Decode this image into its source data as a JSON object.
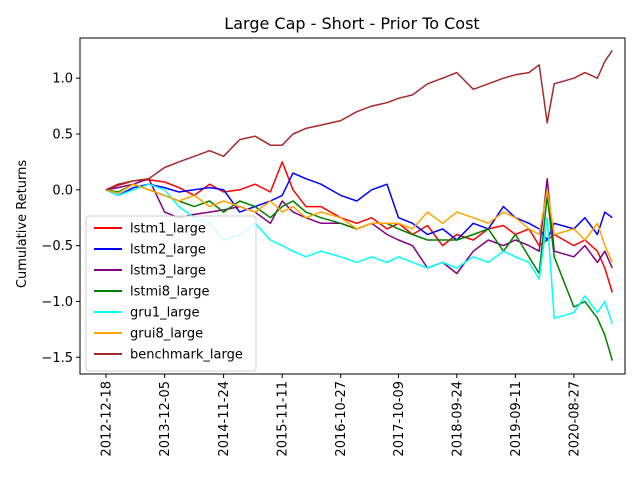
{
  "chart_data": {
    "type": "line",
    "title": "Large Cap - Short - Prior To Cost",
    "xlabel": "",
    "ylabel": "Cumulative Returns",
    "x_ticks": [
      "2012-12-18",
      "2013-12-05",
      "2014-11-24",
      "2015-11-11",
      "2016-10-27",
      "2017-10-09",
      "2018-09-24",
      "2019-09-11",
      "2020-08-27"
    ],
    "xlim": [
      "2012-07-15",
      "2021-06-30"
    ],
    "ylim": [
      -1.65,
      1.36
    ],
    "y_ticks": [
      -1.5,
      -1.0,
      -0.5,
      0.0,
      0.5,
      1.0
    ],
    "y_tick_labels": [
      "−1.5",
      "−1.0",
      "−0.5",
      "0.0",
      "0.5",
      "1.0"
    ],
    "grid": false,
    "legend_position": "lower-left",
    "series": [
      {
        "name": "lstm1_large",
        "color": "#ff0000",
        "x": [
          "2012-12-18",
          "2013-03-01",
          "2013-06-01",
          "2013-09-01",
          "2013-12-05",
          "2014-03-01",
          "2014-06-01",
          "2014-09-01",
          "2014-11-24",
          "2015-03-01",
          "2015-06-01",
          "2015-09-01",
          "2015-11-11",
          "2016-01-15",
          "2016-04-01",
          "2016-07-01",
          "2016-10-27",
          "2017-02-01",
          "2017-05-01",
          "2017-08-01",
          "2017-10-09",
          "2018-01-01",
          "2018-04-01",
          "2018-07-01",
          "2018-09-24",
          "2019-01-01",
          "2019-04-01",
          "2019-07-01",
          "2019-09-11",
          "2019-12-01",
          "2020-02-01",
          "2020-03-20",
          "2020-05-01",
          "2020-08-27",
          "2020-11-01",
          "2021-01-15",
          "2021-03-01",
          "2021-04-15"
        ],
        "y": [
          0.0,
          0.04,
          0.08,
          0.09,
          0.07,
          0.02,
          -0.05,
          0.05,
          -0.02,
          0.0,
          0.05,
          -0.02,
          0.25,
          0.0,
          -0.15,
          -0.15,
          -0.25,
          -0.3,
          -0.25,
          -0.35,
          -0.3,
          -0.4,
          -0.32,
          -0.5,
          -0.4,
          -0.45,
          -0.35,
          -0.32,
          -0.4,
          -0.35,
          -0.5,
          -0.45,
          -0.4,
          -0.5,
          -0.45,
          -0.55,
          -0.7,
          -0.92
        ]
      },
      {
        "name": "lstm2_large",
        "color": "#0000ff",
        "x": [
          "2012-12-18",
          "2013-03-01",
          "2013-06-01",
          "2013-09-01",
          "2013-12-05",
          "2014-03-01",
          "2014-06-01",
          "2014-09-01",
          "2014-11-24",
          "2015-03-01",
          "2015-06-01",
          "2015-09-01",
          "2015-11-11",
          "2016-01-15",
          "2016-04-01",
          "2016-07-01",
          "2016-10-27",
          "2017-02-01",
          "2017-05-01",
          "2017-08-01",
          "2017-10-09",
          "2018-01-01",
          "2018-04-01",
          "2018-07-01",
          "2018-09-24",
          "2019-01-01",
          "2019-04-01",
          "2019-07-01",
          "2019-09-11",
          "2019-12-01",
          "2020-02-01",
          "2020-03-20",
          "2020-05-01",
          "2020-08-27",
          "2020-11-01",
          "2021-01-15",
          "2021-03-01",
          "2021-04-15"
        ],
        "y": [
          0.0,
          -0.05,
          0.02,
          0.05,
          0.02,
          -0.02,
          0.0,
          0.02,
          0.0,
          -0.2,
          -0.15,
          -0.1,
          -0.05,
          0.15,
          0.1,
          0.05,
          -0.05,
          -0.1,
          0.0,
          0.05,
          -0.25,
          -0.3,
          -0.4,
          -0.35,
          -0.45,
          -0.3,
          -0.35,
          -0.15,
          -0.25,
          -0.3,
          -0.35,
          -0.45,
          -0.3,
          -0.35,
          -0.25,
          -0.4,
          -0.2,
          -0.25
        ]
      },
      {
        "name": "lstm3_large",
        "color": "#800080",
        "x": [
          "2012-12-18",
          "2013-03-01",
          "2013-06-01",
          "2013-09-01",
          "2013-12-05",
          "2014-03-01",
          "2014-06-01",
          "2014-09-01",
          "2014-11-24",
          "2015-03-01",
          "2015-06-01",
          "2015-09-01",
          "2015-11-11",
          "2016-01-15",
          "2016-04-01",
          "2016-07-01",
          "2016-10-27",
          "2017-02-01",
          "2017-05-01",
          "2017-08-01",
          "2017-10-09",
          "2018-01-01",
          "2018-04-01",
          "2018-07-01",
          "2018-09-24",
          "2019-01-01",
          "2019-04-01",
          "2019-07-01",
          "2019-09-11",
          "2019-12-01",
          "2020-02-01",
          "2020-03-20",
          "2020-05-01",
          "2020-08-27",
          "2020-11-01",
          "2021-01-15",
          "2021-03-01",
          "2021-04-15"
        ],
        "y": [
          0.0,
          0.02,
          0.05,
          0.1,
          -0.2,
          -0.25,
          -0.22,
          -0.2,
          -0.18,
          -0.15,
          -0.2,
          -0.3,
          -0.1,
          -0.2,
          -0.25,
          -0.3,
          -0.3,
          -0.35,
          -0.3,
          -0.4,
          -0.45,
          -0.5,
          -0.7,
          -0.65,
          -0.75,
          -0.55,
          -0.45,
          -0.5,
          -0.45,
          -0.5,
          -0.55,
          0.1,
          -0.55,
          -0.6,
          -0.5,
          -0.65,
          -0.55,
          -0.7
        ]
      },
      {
        "name": "lstmi8_large",
        "color": "#008000",
        "x": [
          "2012-12-18",
          "2013-03-01",
          "2013-06-01",
          "2013-09-01",
          "2013-12-05",
          "2014-03-01",
          "2014-06-01",
          "2014-09-01",
          "2014-11-24",
          "2015-03-01",
          "2015-06-01",
          "2015-09-01",
          "2015-11-11",
          "2016-01-15",
          "2016-04-01",
          "2016-07-01",
          "2016-10-27",
          "2017-02-01",
          "2017-05-01",
          "2017-08-01",
          "2017-10-09",
          "2018-01-01",
          "2018-04-01",
          "2018-07-01",
          "2018-09-24",
          "2019-01-01",
          "2019-04-01",
          "2019-07-01",
          "2019-09-11",
          "2019-12-01",
          "2020-02-01",
          "2020-03-20",
          "2020-05-01",
          "2020-08-27",
          "2020-11-01",
          "2021-01-15",
          "2021-03-01",
          "2021-04-15"
        ],
        "y": [
          0.0,
          -0.02,
          0.05,
          0.0,
          -0.05,
          -0.1,
          -0.15,
          -0.1,
          -0.2,
          -0.1,
          -0.15,
          -0.25,
          -0.15,
          -0.1,
          -0.2,
          -0.25,
          -0.3,
          -0.35,
          -0.3,
          -0.3,
          -0.35,
          -0.4,
          -0.45,
          -0.45,
          -0.45,
          -0.4,
          -0.35,
          -0.55,
          -0.4,
          -0.6,
          -0.75,
          -0.05,
          -0.6,
          -1.05,
          -1.0,
          -1.15,
          -1.3,
          -1.53
        ]
      },
      {
        "name": "gru1_large",
        "color": "#00ffff",
        "x": [
          "2012-12-18",
          "2013-03-01",
          "2013-06-01",
          "2013-09-01",
          "2013-12-05",
          "2014-03-01",
          "2014-06-01",
          "2014-09-01",
          "2014-11-24",
          "2015-03-01",
          "2015-06-01",
          "2015-09-01",
          "2015-11-11",
          "2016-01-15",
          "2016-04-01",
          "2016-07-01",
          "2016-10-27",
          "2017-02-01",
          "2017-05-01",
          "2017-08-01",
          "2017-10-09",
          "2018-01-01",
          "2018-04-01",
          "2018-07-01",
          "2018-09-24",
          "2019-01-01",
          "2019-04-01",
          "2019-07-01",
          "2019-09-11",
          "2019-12-01",
          "2020-02-01",
          "2020-03-20",
          "2020-05-01",
          "2020-08-27",
          "2020-11-01",
          "2021-01-15",
          "2021-03-01",
          "2021-04-15"
        ],
        "y": [
          0.0,
          -0.05,
          0.0,
          0.05,
          0.0,
          -0.15,
          -0.25,
          -0.3,
          -0.45,
          -0.4,
          -0.3,
          -0.45,
          -0.5,
          -0.55,
          -0.6,
          -0.55,
          -0.6,
          -0.65,
          -0.6,
          -0.65,
          -0.6,
          -0.65,
          -0.7,
          -0.65,
          -0.7,
          -0.6,
          -0.65,
          -0.55,
          -0.6,
          -0.65,
          -0.8,
          -0.25,
          -1.15,
          -1.1,
          -0.95,
          -1.1,
          -1.0,
          -1.2
        ]
      },
      {
        "name": "grui8_large",
        "color": "#ffa500",
        "x": [
          "2012-12-18",
          "2013-03-01",
          "2013-06-01",
          "2013-09-01",
          "2013-12-05",
          "2014-03-01",
          "2014-06-01",
          "2014-09-01",
          "2014-11-24",
          "2015-03-01",
          "2015-06-01",
          "2015-09-01",
          "2015-11-11",
          "2016-01-15",
          "2016-04-01",
          "2016-07-01",
          "2016-10-27",
          "2017-02-01",
          "2017-05-01",
          "2017-08-01",
          "2017-10-09",
          "2018-01-01",
          "2018-04-01",
          "2018-07-01",
          "2018-09-24",
          "2019-01-01",
          "2019-04-01",
          "2019-07-01",
          "2019-09-11",
          "2019-12-01",
          "2020-02-01",
          "2020-03-20",
          "2020-05-01",
          "2020-08-27",
          "2020-11-01",
          "2021-01-15",
          "2021-03-01",
          "2021-04-15"
        ],
        "y": [
          0.0,
          -0.03,
          0.05,
          0.0,
          -0.05,
          -0.1,
          -0.05,
          -0.15,
          -0.1,
          -0.15,
          -0.2,
          -0.1,
          -0.2,
          -0.15,
          -0.25,
          -0.2,
          -0.25,
          -0.35,
          -0.3,
          -0.3,
          -0.3,
          -0.35,
          -0.2,
          -0.3,
          -0.2,
          -0.25,
          -0.3,
          -0.2,
          -0.25,
          -0.35,
          -0.4,
          0.0,
          -0.4,
          -0.35,
          -0.45,
          -0.3,
          -0.5,
          -0.65
        ]
      },
      {
        "name": "benchmark_large",
        "color": "#a52a2a",
        "x": [
          "2012-12-18",
          "2013-03-01",
          "2013-06-01",
          "2013-09-01",
          "2013-12-05",
          "2014-03-01",
          "2014-06-01",
          "2014-09-01",
          "2014-11-24",
          "2015-03-01",
          "2015-06-01",
          "2015-09-01",
          "2015-11-11",
          "2016-01-15",
          "2016-04-01",
          "2016-07-01",
          "2016-10-27",
          "2017-02-01",
          "2017-05-01",
          "2017-08-01",
          "2017-10-09",
          "2018-01-01",
          "2018-04-01",
          "2018-07-01",
          "2018-09-24",
          "2019-01-01",
          "2019-04-01",
          "2019-07-01",
          "2019-09-11",
          "2019-12-01",
          "2020-02-01",
          "2020-03-20",
          "2020-05-01",
          "2020-08-27",
          "2020-11-01",
          "2021-01-15",
          "2021-03-01",
          "2021-04-15"
        ],
        "y": [
          0.0,
          0.05,
          0.08,
          0.1,
          0.2,
          0.25,
          0.3,
          0.35,
          0.3,
          0.45,
          0.48,
          0.4,
          0.4,
          0.5,
          0.55,
          0.58,
          0.62,
          0.7,
          0.75,
          0.78,
          0.82,
          0.85,
          0.95,
          1.0,
          1.05,
          0.9,
          0.95,
          1.0,
          1.03,
          1.05,
          1.12,
          0.6,
          0.95,
          1.0,
          1.05,
          1.0,
          1.15,
          1.25
        ]
      }
    ]
  }
}
